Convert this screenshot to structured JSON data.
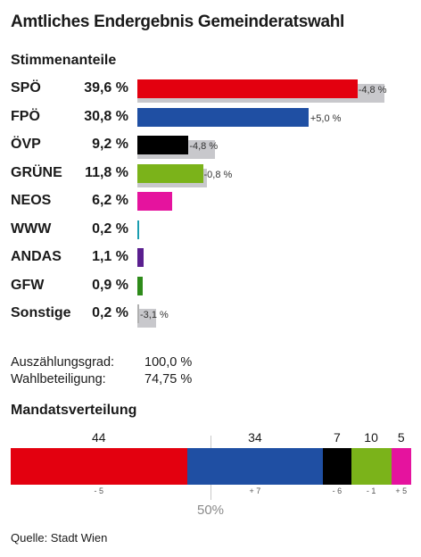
{
  "title": "Amtliches Endergebnis Gemeinderatswahl",
  "votes_heading": "Stimmenanteile",
  "seats_heading": "Mandatsverteilung",
  "stats": [
    {
      "label": "Auszählungsgrad:",
      "value": "100,0 %"
    },
    {
      "label": "Wahlbeteiligung:",
      "value": "74,75 %"
    }
  ],
  "source": "Quelle: Stadt Wien",
  "midpoint_label": "50%",
  "chart_data": [
    {
      "type": "bar",
      "title": "Stimmenanteile",
      "categories": [
        "SPÖ",
        "FPÖ",
        "ÖVP",
        "GRÜNE",
        "NEOS",
        "WWW",
        "ANDAS",
        "GFW",
        "Sonstige"
      ],
      "series": [
        {
          "values": [
            39.6,
            30.8,
            9.2,
            11.8,
            6.2,
            0.2,
            1.1,
            0.9,
            0.2
          ]
        }
      ],
      "value_labels": [
        "39,6 %",
        "30,8 %",
        "9,2 %",
        "11,8 %",
        "6,2 %",
        "0,2 %",
        "1,1 %",
        "0,9 %",
        "0,2 %"
      ],
      "change_labels": [
        "-4,8 %",
        "+5,0 %",
        "-4,8 %",
        "-0,8 %",
        "",
        "",
        "",
        "",
        "-3,1 %"
      ],
      "change_values": [
        -4.8,
        5.0,
        -4.8,
        -0.8,
        null,
        null,
        null,
        null,
        -3.1
      ],
      "colors": [
        "#e3000f",
        "#1f4fa3",
        "#000000",
        "#7bb31a",
        "#e5139e",
        "#1a9db0",
        "#5a1f8f",
        "#2e8b1a",
        "#b0b0b0"
      ],
      "shadow_color": "#c8c8cc",
      "xlim": [
        0,
        46
      ]
    },
    {
      "type": "bar",
      "title": "Mandatsverteilung",
      "categories": [
        "SPÖ",
        "FPÖ",
        "ÖVP",
        "GRÜNE",
        "NEOS"
      ],
      "series": [
        {
          "values": [
            44,
            34,
            7,
            10,
            5
          ]
        }
      ],
      "change_labels": [
        "- 5",
        "+ 7",
        "- 6",
        "- 1",
        "+ 5"
      ],
      "colors": [
        "#e3000f",
        "#1f4fa3",
        "#000000",
        "#7bb31a",
        "#e5139e"
      ],
      "total": 100
    }
  ]
}
